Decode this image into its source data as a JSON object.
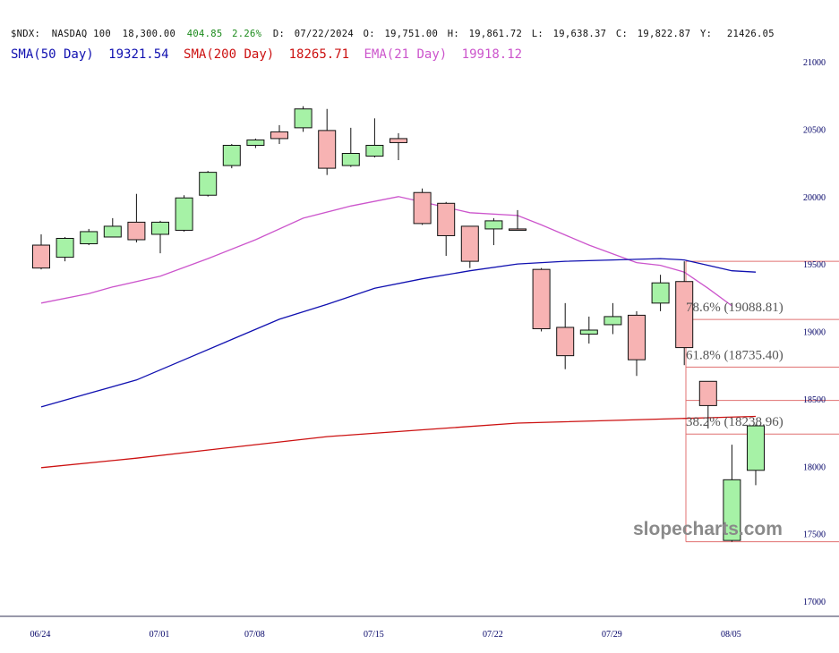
{
  "header": {
    "symbol": "$NDX:",
    "name": "NASDAQ 100",
    "last": "18,300.00",
    "change": "404.85",
    "change_pct": "2.26%",
    "date_label": "D:",
    "date": "07/22/2024",
    "open_label": "O:",
    "open": "19,751.00",
    "high_label": "H:",
    "high": "19,861.72",
    "low_label": "L:",
    "low": "19,638.37",
    "close_label": "C:",
    "close": "19,822.87",
    "y_label": "Y:",
    "y": "21426.05",
    "change_color": "#1a8a1a"
  },
  "indicators": [
    {
      "label": "SMA(50 Day)",
      "value": "19321.54",
      "color": "#1010b0"
    },
    {
      "label": "SMA(200 Day)",
      "value": "18265.71",
      "color": "#cc1111"
    },
    {
      "label": "EMA(21 Day)",
      "value": "19918.12",
      "color": "#cc55cc"
    }
  ],
  "watermark": "slopecharts.com",
  "chart_data": {
    "type": "candlestick",
    "y_range": [
      16850,
      21050
    ],
    "y_ticks": [
      17000,
      17500,
      18000,
      18500,
      19000,
      19500,
      20000,
      20500,
      21000
    ],
    "x_tick_labels": [
      {
        "index": 0,
        "label": "06/24"
      },
      {
        "index": 5,
        "label": "07/01"
      },
      {
        "index": 9,
        "label": "07/08"
      },
      {
        "index": 14,
        "label": "07/15"
      },
      {
        "index": 19,
        "label": "07/22"
      },
      {
        "index": 24,
        "label": "07/29"
      },
      {
        "index": 29,
        "label": "08/05"
      }
    ],
    "candles": [
      {
        "date": "06/24",
        "open": 19640,
        "high": 19720,
        "low": 19460,
        "close": 19470
      },
      {
        "date": "06/25",
        "open": 19550,
        "high": 19700,
        "low": 19520,
        "close": 19690
      },
      {
        "date": "06/26",
        "open": 19650,
        "high": 19760,
        "low": 19640,
        "close": 19740
      },
      {
        "date": "06/27",
        "open": 19700,
        "high": 19840,
        "low": 19700,
        "close": 19780
      },
      {
        "date": "06/28",
        "open": 19810,
        "high": 20020,
        "low": 19660,
        "close": 19680
      },
      {
        "date": "07/01",
        "open": 19720,
        "high": 19820,
        "low": 19580,
        "close": 19810
      },
      {
        "date": "07/02",
        "open": 19750,
        "high": 20010,
        "low": 19740,
        "close": 19990
      },
      {
        "date": "07/03",
        "open": 20010,
        "high": 20190,
        "low": 20000,
        "close": 20180
      },
      {
        "date": "07/05",
        "open": 20230,
        "high": 20390,
        "low": 20210,
        "close": 20380
      },
      {
        "date": "07/08",
        "open": 20380,
        "high": 20430,
        "low": 20360,
        "close": 20420
      },
      {
        "date": "07/09",
        "open": 20480,
        "high": 20530,
        "low": 20390,
        "close": 20430
      },
      {
        "date": "07/10",
        "open": 20510,
        "high": 20670,
        "low": 20480,
        "close": 20650
      },
      {
        "date": "07/11",
        "open": 20490,
        "high": 20650,
        "low": 20160,
        "close": 20210
      },
      {
        "date": "07/12",
        "open": 20230,
        "high": 20510,
        "low": 20220,
        "close": 20320
      },
      {
        "date": "07/15",
        "open": 20300,
        "high": 20580,
        "low": 20290,
        "close": 20380
      },
      {
        "date": "07/16",
        "open": 20430,
        "high": 20470,
        "low": 20270,
        "close": 20400
      },
      {
        "date": "07/17",
        "open": 20030,
        "high": 20060,
        "low": 19790,
        "close": 19800
      },
      {
        "date": "07/18",
        "open": 19950,
        "high": 19960,
        "low": 19560,
        "close": 19710
      },
      {
        "date": "07/19",
        "open": 19780,
        "high": 19780,
        "low": 19470,
        "close": 19520
      },
      {
        "date": "07/22",
        "open": 19760,
        "high": 19840,
        "low": 19640,
        "close": 19820
      },
      {
        "date": "07/23",
        "open": 19760,
        "high": 19900,
        "low": 19750,
        "close": 19750
      },
      {
        "date": "07/24",
        "open": 19460,
        "high": 19470,
        "low": 19000,
        "close": 19020
      },
      {
        "date": "07/25",
        "open": 19030,
        "high": 19210,
        "low": 18720,
        "close": 18820
      },
      {
        "date": "07/26",
        "open": 18980,
        "high": 19110,
        "low": 18910,
        "close": 19010
      },
      {
        "date": "07/29",
        "open": 19050,
        "high": 19210,
        "low": 18980,
        "close": 19110
      },
      {
        "date": "07/30",
        "open": 19120,
        "high": 19150,
        "low": 18670,
        "close": 18790
      },
      {
        "date": "07/31",
        "open": 19210,
        "high": 19420,
        "low": 19150,
        "close": 19360
      },
      {
        "date": "08/01",
        "open": 19370,
        "high": 19520,
        "low": 18750,
        "close": 18880
      },
      {
        "date": "08/02",
        "open": 18630,
        "high": 18630,
        "low": 18280,
        "close": 18450
      },
      {
        "date": "08/05",
        "open": 17450,
        "high": 18160,
        "low": 17440,
        "close": 17900
      },
      {
        "date": "08/06",
        "open": 17970,
        "high": 18310,
        "low": 17860,
        "close": 18300
      }
    ],
    "series": [
      {
        "name": "EMA(21 Day)",
        "color": "#cc55cc",
        "points": [
          [
            0,
            19210
          ],
          [
            2,
            19280
          ],
          [
            3,
            19330
          ],
          [
            5,
            19410
          ],
          [
            7,
            19540
          ],
          [
            9,
            19680
          ],
          [
            11,
            19840
          ],
          [
            13,
            19930
          ],
          [
            15,
            20000
          ],
          [
            17,
            19920
          ],
          [
            18,
            19880
          ],
          [
            20,
            19860
          ],
          [
            21,
            19790
          ],
          [
            23,
            19640
          ],
          [
            25,
            19510
          ],
          [
            26,
            19490
          ],
          [
            27,
            19440
          ],
          [
            28,
            19320
          ],
          [
            29,
            19190
          ]
        ]
      },
      {
        "name": "SMA(50 Day)",
        "color": "#1010b0",
        "points": [
          [
            0,
            18440
          ],
          [
            2,
            18540
          ],
          [
            4,
            18640
          ],
          [
            6,
            18790
          ],
          [
            8,
            18940
          ],
          [
            10,
            19090
          ],
          [
            12,
            19200
          ],
          [
            14,
            19320
          ],
          [
            16,
            19390
          ],
          [
            18,
            19450
          ],
          [
            20,
            19500
          ],
          [
            22,
            19520
          ],
          [
            24,
            19530
          ],
          [
            26,
            19540
          ],
          [
            27,
            19530
          ],
          [
            28,
            19490
          ],
          [
            29,
            19450
          ],
          [
            30,
            19440
          ]
        ]
      },
      {
        "name": "SMA(200 Day)",
        "color": "#cc1111",
        "points": [
          [
            0,
            17990
          ],
          [
            4,
            18060
          ],
          [
            8,
            18140
          ],
          [
            12,
            18220
          ],
          [
            16,
            18270
          ],
          [
            20,
            18320
          ],
          [
            24,
            18340
          ],
          [
            28,
            18360
          ],
          [
            30,
            18370
          ]
        ]
      }
    ],
    "fib_levels": [
      {
        "price": 19520,
        "label": ""
      },
      {
        "price": 19088.81,
        "label": "78.6% (19088.81)"
      },
      {
        "price": 18735.4,
        "label": "61.8% (18735.40)"
      },
      {
        "price": 18488,
        "label": ""
      },
      {
        "price": 18238.96,
        "label": "38.2% (18238.96)"
      },
      {
        "price": 17440,
        "label": ""
      }
    ]
  }
}
